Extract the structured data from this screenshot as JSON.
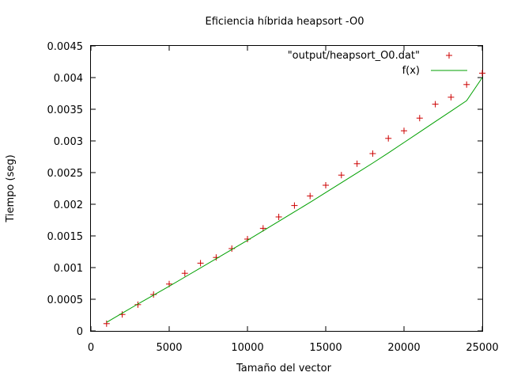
{
  "chart_data": {
    "type": "scatter",
    "title": "Eficiencia híbrida heapsort -O0",
    "xlabel": "Tamaño del vector",
    "ylabel": "Tiempo (seg)",
    "xlim": [
      0,
      25000
    ],
    "ylim": [
      0,
      0.0045
    ],
    "x_ticks": [
      "0",
      "5000",
      "10000",
      "15000",
      "20000",
      "25000"
    ],
    "y_ticks": [
      "0",
      "0.0005",
      "0.001",
      "0.0015",
      "0.002",
      "0.0025",
      "0.003",
      "0.0035",
      "0.004",
      "0.0045"
    ],
    "grid": false,
    "legend_position": "top-right",
    "series": [
      {
        "name": "\"output/heapsort_O0.dat\"",
        "kind": "points",
        "marker": "+",
        "color": "#cc0000",
        "x": [
          1000,
          2000,
          3000,
          4000,
          5000,
          6000,
          7000,
          8000,
          9000,
          10000,
          11000,
          12000,
          13000,
          14000,
          15000,
          16000,
          17000,
          18000,
          19000,
          20000,
          21000,
          22000,
          23000,
          24000,
          25000
        ],
        "y": [
          0.000115,
          0.00026,
          0.000415,
          0.000575,
          0.00074,
          0.00091,
          0.00107,
          0.00116,
          0.0013,
          0.00145,
          0.00162,
          0.0018,
          0.00198,
          0.00213,
          0.0023,
          0.00246,
          0.00264,
          0.0028,
          0.00304,
          0.00316,
          0.00336,
          0.00358,
          0.00369,
          0.00389,
          0.00407
        ]
      },
      {
        "name": "f(x)",
        "kind": "line",
        "color": "#00a000",
        "x": [
          1000,
          2000,
          3000,
          4000,
          5000,
          6000,
          7000,
          8000,
          9000,
          10000,
          11000,
          12000,
          13000,
          14000,
          15000,
          16000,
          17000,
          18000,
          19000,
          20000,
          21000,
          22000,
          23000,
          24000,
          25000
        ],
        "y": [
          0.000135,
          0.00028,
          0.000425,
          0.000565,
          0.000705,
          0.00085,
          0.000995,
          0.00114,
          0.001285,
          0.00143,
          0.00158,
          0.00173,
          0.00188,
          0.00203,
          0.002185,
          0.00234,
          0.002495,
          0.00265,
          0.00281,
          0.002975,
          0.00314,
          0.003305,
          0.00347,
          0.003635,
          0.004
        ]
      }
    ]
  }
}
